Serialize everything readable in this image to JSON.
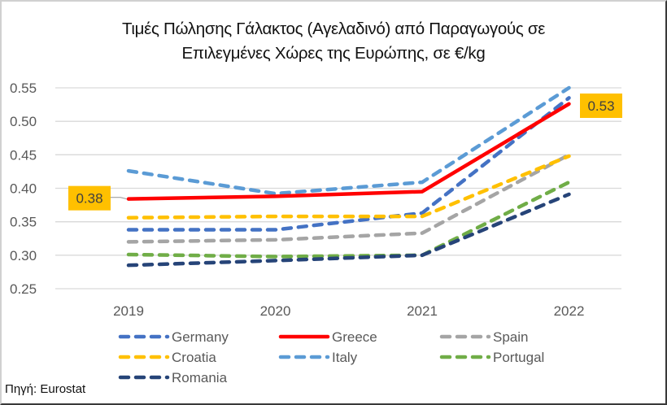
{
  "chart_data": {
    "type": "line",
    "title_lines": [
      "Τιμές Πώλησης Γάλακτος (Αγελαδινό) από Παραγωγούς σε",
      "Επιλεγμένες Χώρες της Ευρώπης, σε €/kg"
    ],
    "xlabel": "",
    "ylabel": "",
    "x": [
      "2019",
      "2020",
      "2021",
      "2022"
    ],
    "ylim": [
      0.25,
      0.55
    ],
    "yticks": [
      "0.25",
      "0.30",
      "0.35",
      "0.40",
      "0.45",
      "0.50",
      "0.55"
    ],
    "grid": true,
    "legend_position": "bottom",
    "series": [
      {
        "name": "Germany",
        "color": "#4472C4",
        "dashed": true,
        "values": [
          0.338,
          0.338,
          0.363,
          0.535
        ]
      },
      {
        "name": "Greece",
        "color": "#FF0000",
        "dashed": false,
        "values": [
          0.384,
          0.388,
          0.395,
          0.526
        ]
      },
      {
        "name": "Spain",
        "color": "#A5A5A5",
        "dashed": true,
        "values": [
          0.32,
          0.323,
          0.333,
          0.45
        ]
      },
      {
        "name": "Croatia",
        "color": "#FFC000",
        "dashed": true,
        "values": [
          0.356,
          0.358,
          0.358,
          0.448
        ]
      },
      {
        "name": "Italy",
        "color": "#5B9BD5",
        "dashed": true,
        "values": [
          0.426,
          0.392,
          0.409,
          0.55
        ]
      },
      {
        "name": "Portugal",
        "color": "#70AD47",
        "dashed": true,
        "values": [
          0.301,
          0.298,
          0.3,
          0.409
        ]
      },
      {
        "name": "Romania",
        "color": "#264478",
        "dashed": true,
        "values": [
          0.285,
          0.292,
          0.3,
          0.391
        ]
      }
    ],
    "annotations": [
      {
        "series": "Greece",
        "x": "2019",
        "text": "0.38",
        "side": "left",
        "bg": "#FFC000"
      },
      {
        "series": "Greece",
        "x": "2022",
        "text": "0.53",
        "side": "right",
        "bg": "#FFC000"
      }
    ],
    "source": "Πηγή: Eurostat"
  }
}
